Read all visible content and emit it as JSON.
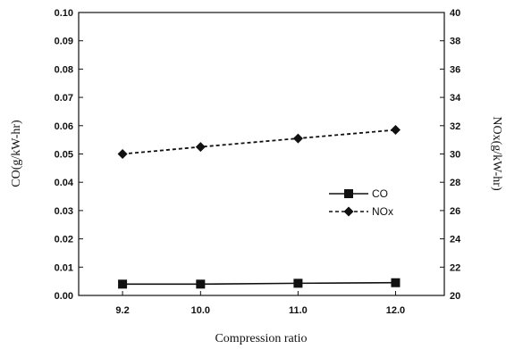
{
  "chart_data": {
    "type": "line",
    "xlabel": "Compression ratio",
    "ylabel_left": "CO(g/kW-hr)",
    "ylabel_right": "NOx(g/kW-hr)",
    "x_ticks": [
      "9.2",
      "10.0",
      "11.0",
      "12.0"
    ],
    "x_values": [
      9.2,
      10.0,
      11.0,
      12.0
    ],
    "xlim": [
      8.75,
      12.5
    ],
    "ylim_left": [
      0,
      0.1
    ],
    "ylim_right": [
      20,
      40
    ],
    "left_ticks": [
      "0.00",
      "0.01",
      "0.02",
      "0.03",
      "0.04",
      "0.05",
      "0.06",
      "0.07",
      "0.08",
      "0.09",
      "0.10"
    ],
    "right_ticks": [
      "20",
      "22",
      "24",
      "26",
      "28",
      "30",
      "32",
      "34",
      "36",
      "38",
      "40"
    ],
    "grid": false,
    "legend_position": "center-right",
    "series": [
      {
        "name": "CO",
        "axis": "left",
        "marker": "square",
        "line_style": "solid",
        "color": "#111111",
        "x": [
          9.2,
          10.0,
          11.0,
          12.0
        ],
        "y": [
          0.004,
          0.004,
          0.0043,
          0.0045
        ]
      },
      {
        "name": "NOx",
        "axis": "right",
        "marker": "diamond",
        "line_style": "dashed",
        "color": "#111111",
        "x": [
          9.2,
          10.0,
          11.0,
          12.0
        ],
        "y": [
          30.0,
          30.5,
          31.1,
          31.7
        ]
      }
    ]
  }
}
